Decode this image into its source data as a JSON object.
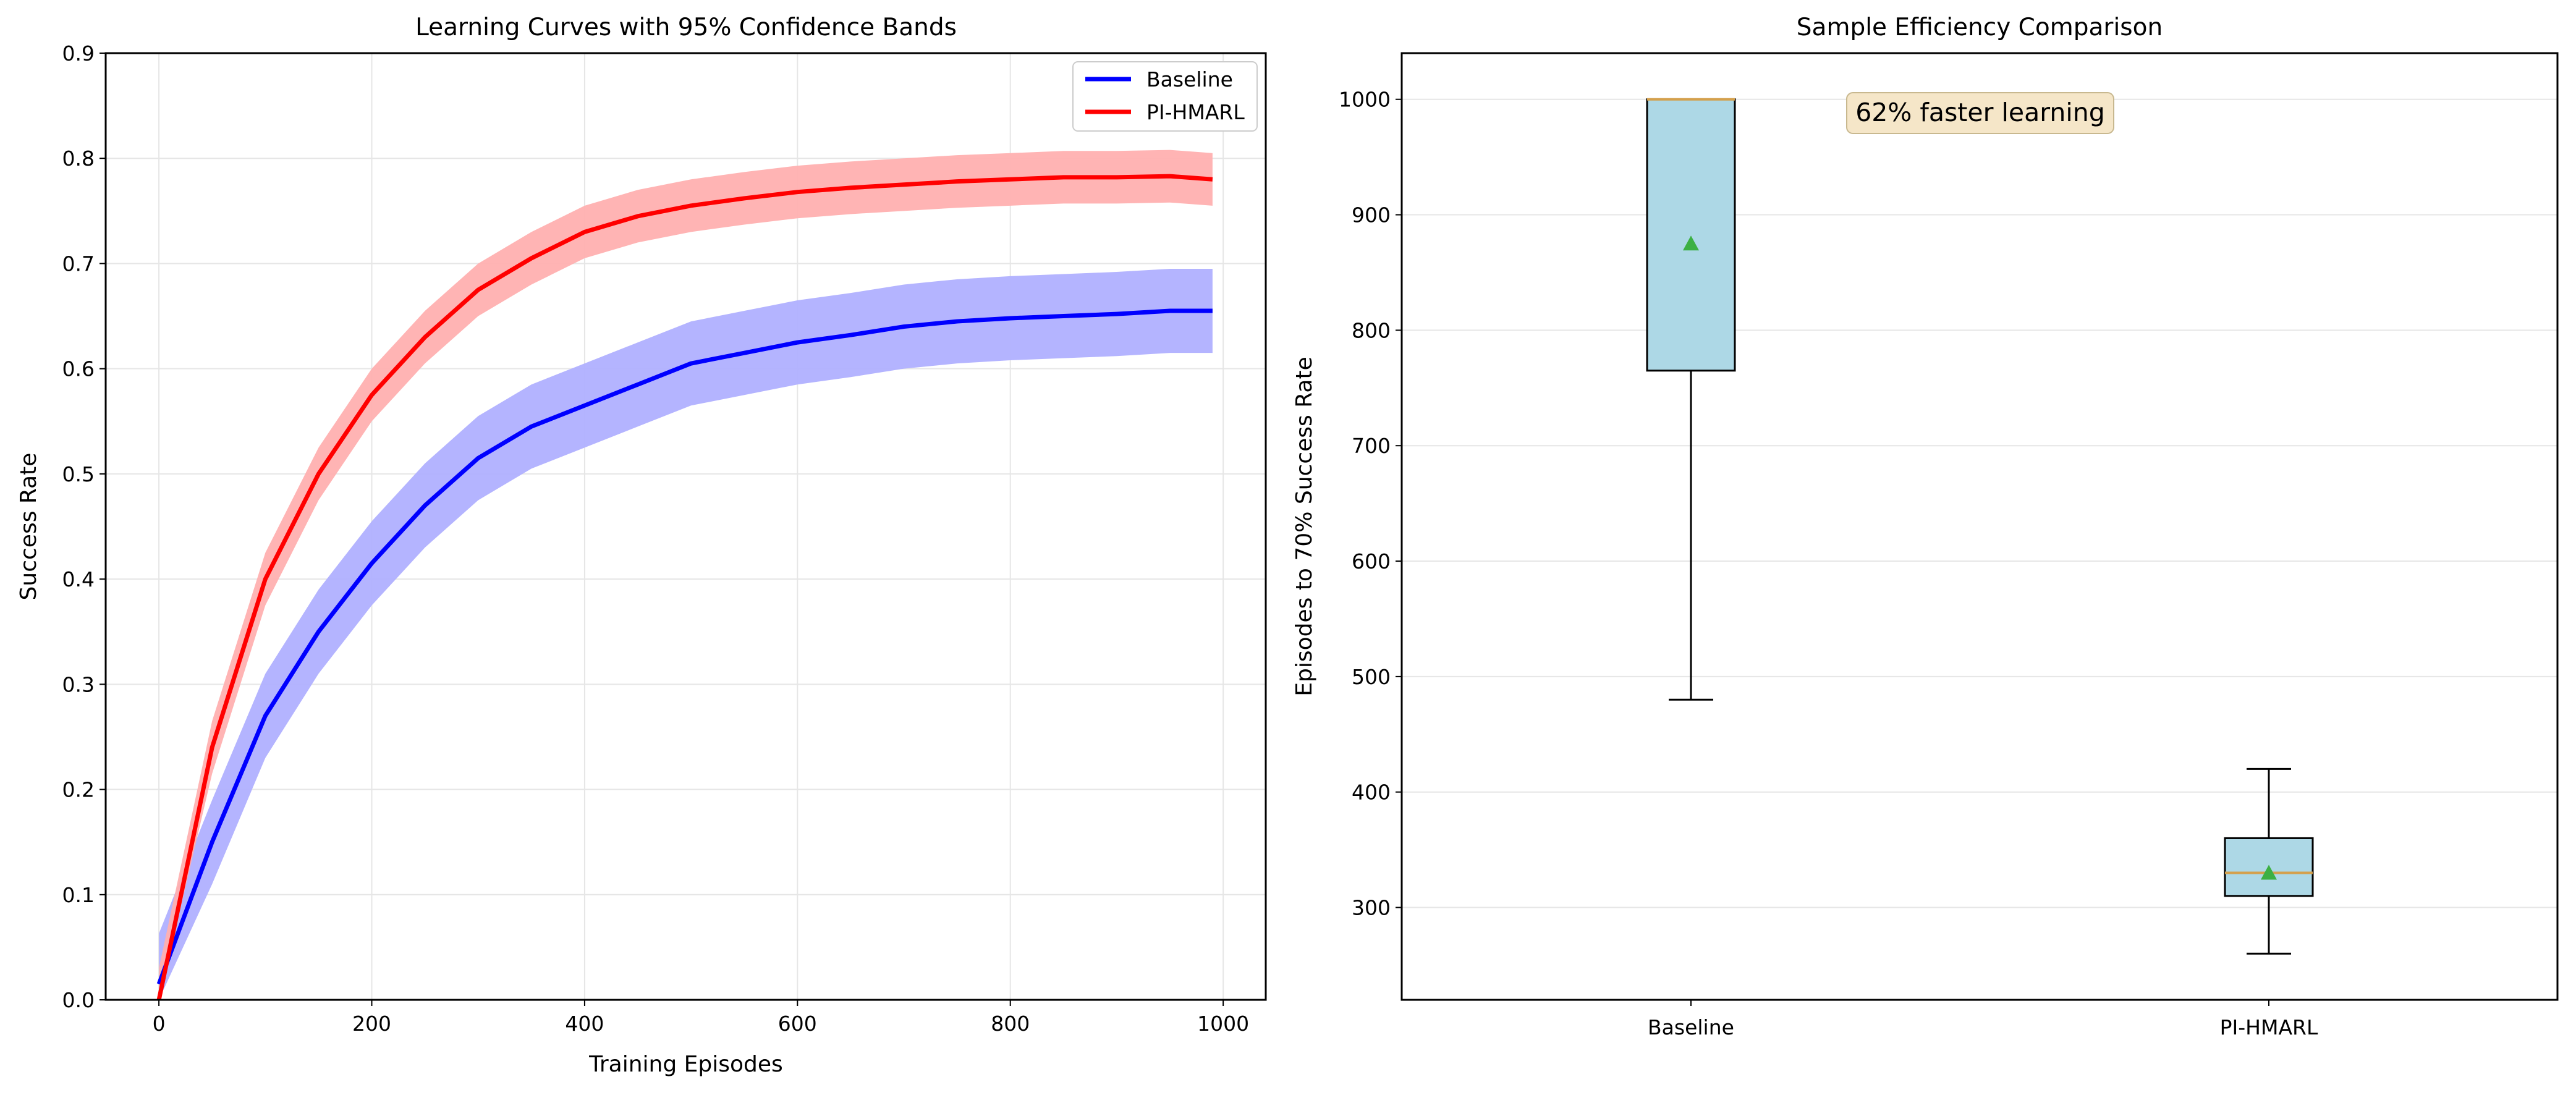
{
  "colors": {
    "baseline_line": "#0000ff",
    "baseline_band": "#b0b0ff",
    "pihmarl_line": "#ff0000",
    "pihmarl_band": "#ffb0b0",
    "box_fill": "#add8e6",
    "median_line": "#d4a04c",
    "mean_marker": "#3cb043",
    "annotation_bg": "#f5e6c8",
    "grid": "#e6e6e6"
  },
  "chart_data": [
    {
      "type": "line",
      "title": "Learning Curves with 95% Confidence Bands",
      "xlabel": "Training Episodes",
      "ylabel": "Success Rate",
      "xlim": [
        -50,
        1040
      ],
      "ylim": [
        0,
        0.9
      ],
      "xticks": [
        "0",
        "200",
        "400",
        "600",
        "800",
        "1000"
      ],
      "yticks": [
        "0.0",
        "0.1",
        "0.2",
        "0.3",
        "0.4",
        "0.5",
        "0.6",
        "0.7",
        "0.8",
        "0.9"
      ],
      "grid": true,
      "legend": "top-right",
      "x": [
        0,
        50,
        100,
        150,
        200,
        250,
        300,
        350,
        400,
        450,
        500,
        550,
        600,
        650,
        700,
        750,
        800,
        850,
        900,
        950,
        990
      ],
      "series": [
        {
          "name": "Baseline",
          "values": [
            0.015,
            0.15,
            0.27,
            0.35,
            0.415,
            0.47,
            0.515,
            0.545,
            0.565,
            0.585,
            0.605,
            0.615,
            0.625,
            0.632,
            0.64,
            0.645,
            0.648,
            0.65,
            0.652,
            0.655,
            0.655
          ],
          "band": 0.04
        },
        {
          "name": "PI-HMARL",
          "values": [
            0.0,
            0.24,
            0.4,
            0.5,
            0.575,
            0.63,
            0.675,
            0.705,
            0.73,
            0.745,
            0.755,
            0.762,
            0.768,
            0.772,
            0.775,
            0.778,
            0.78,
            0.782,
            0.782,
            0.783,
            0.78
          ],
          "band": 0.025
        }
      ]
    },
    {
      "type": "box",
      "title": "Sample Efficiency Comparison",
      "xlabel": "",
      "ylabel": "Episodes to 70% Success Rate",
      "ylim": [
        220,
        1040
      ],
      "yticks": [
        "300",
        "400",
        "500",
        "600",
        "700",
        "800",
        "900",
        "1000"
      ],
      "grid": true,
      "categories": [
        "Baseline",
        "PI-HMARL"
      ],
      "boxes": [
        {
          "whisker_low": 480,
          "q1": 765,
          "median": 1000,
          "q3": 1000,
          "whisker_high": 1000,
          "mean": 875
        },
        {
          "whisker_low": 260,
          "q1": 310,
          "median": 330,
          "q3": 360,
          "whisker_high": 420,
          "mean": 330
        }
      ],
      "annotation": "62% faster learning"
    }
  ]
}
